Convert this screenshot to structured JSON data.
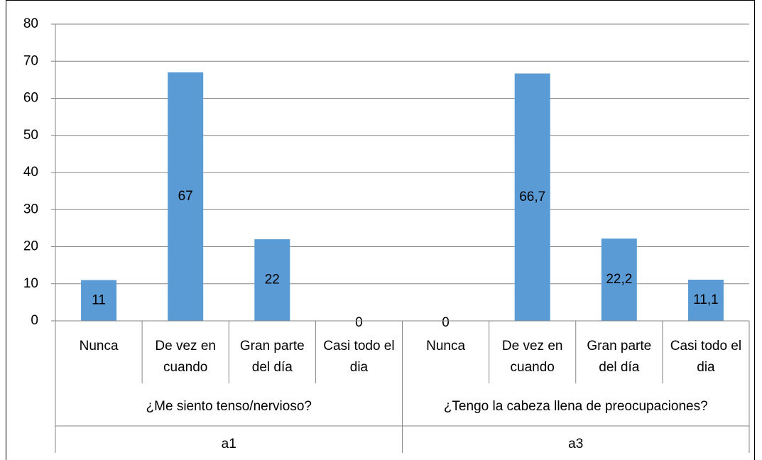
{
  "chart_data": {
    "type": "bar",
    "categories": [
      "Nunca",
      "De vez en cuando",
      "Gran parte del día",
      "Casi todo el dia",
      "Nunca",
      "De vez en cuando",
      "Gran parte del día",
      "Casi todo el dia"
    ],
    "groups": [
      {
        "label": "¿Me siento tenso/nervioso?",
        "sublabel": "a1"
      },
      {
        "label": "¿Tengo la cabeza llena de preocupaciones?",
        "sublabel": "a3"
      }
    ],
    "values": [
      11,
      67,
      22,
      0,
      0,
      66.7,
      22.2,
      11.1
    ],
    "value_labels": [
      "11",
      "67",
      "22",
      "0",
      "0",
      "66,7",
      "22,2",
      "11,1"
    ],
    "color": "#5b9bd5",
    "ylim": [
      0,
      80
    ],
    "yticks": [
      0,
      10,
      20,
      30,
      40,
      50,
      60,
      70,
      80
    ],
    "grid": true
  }
}
